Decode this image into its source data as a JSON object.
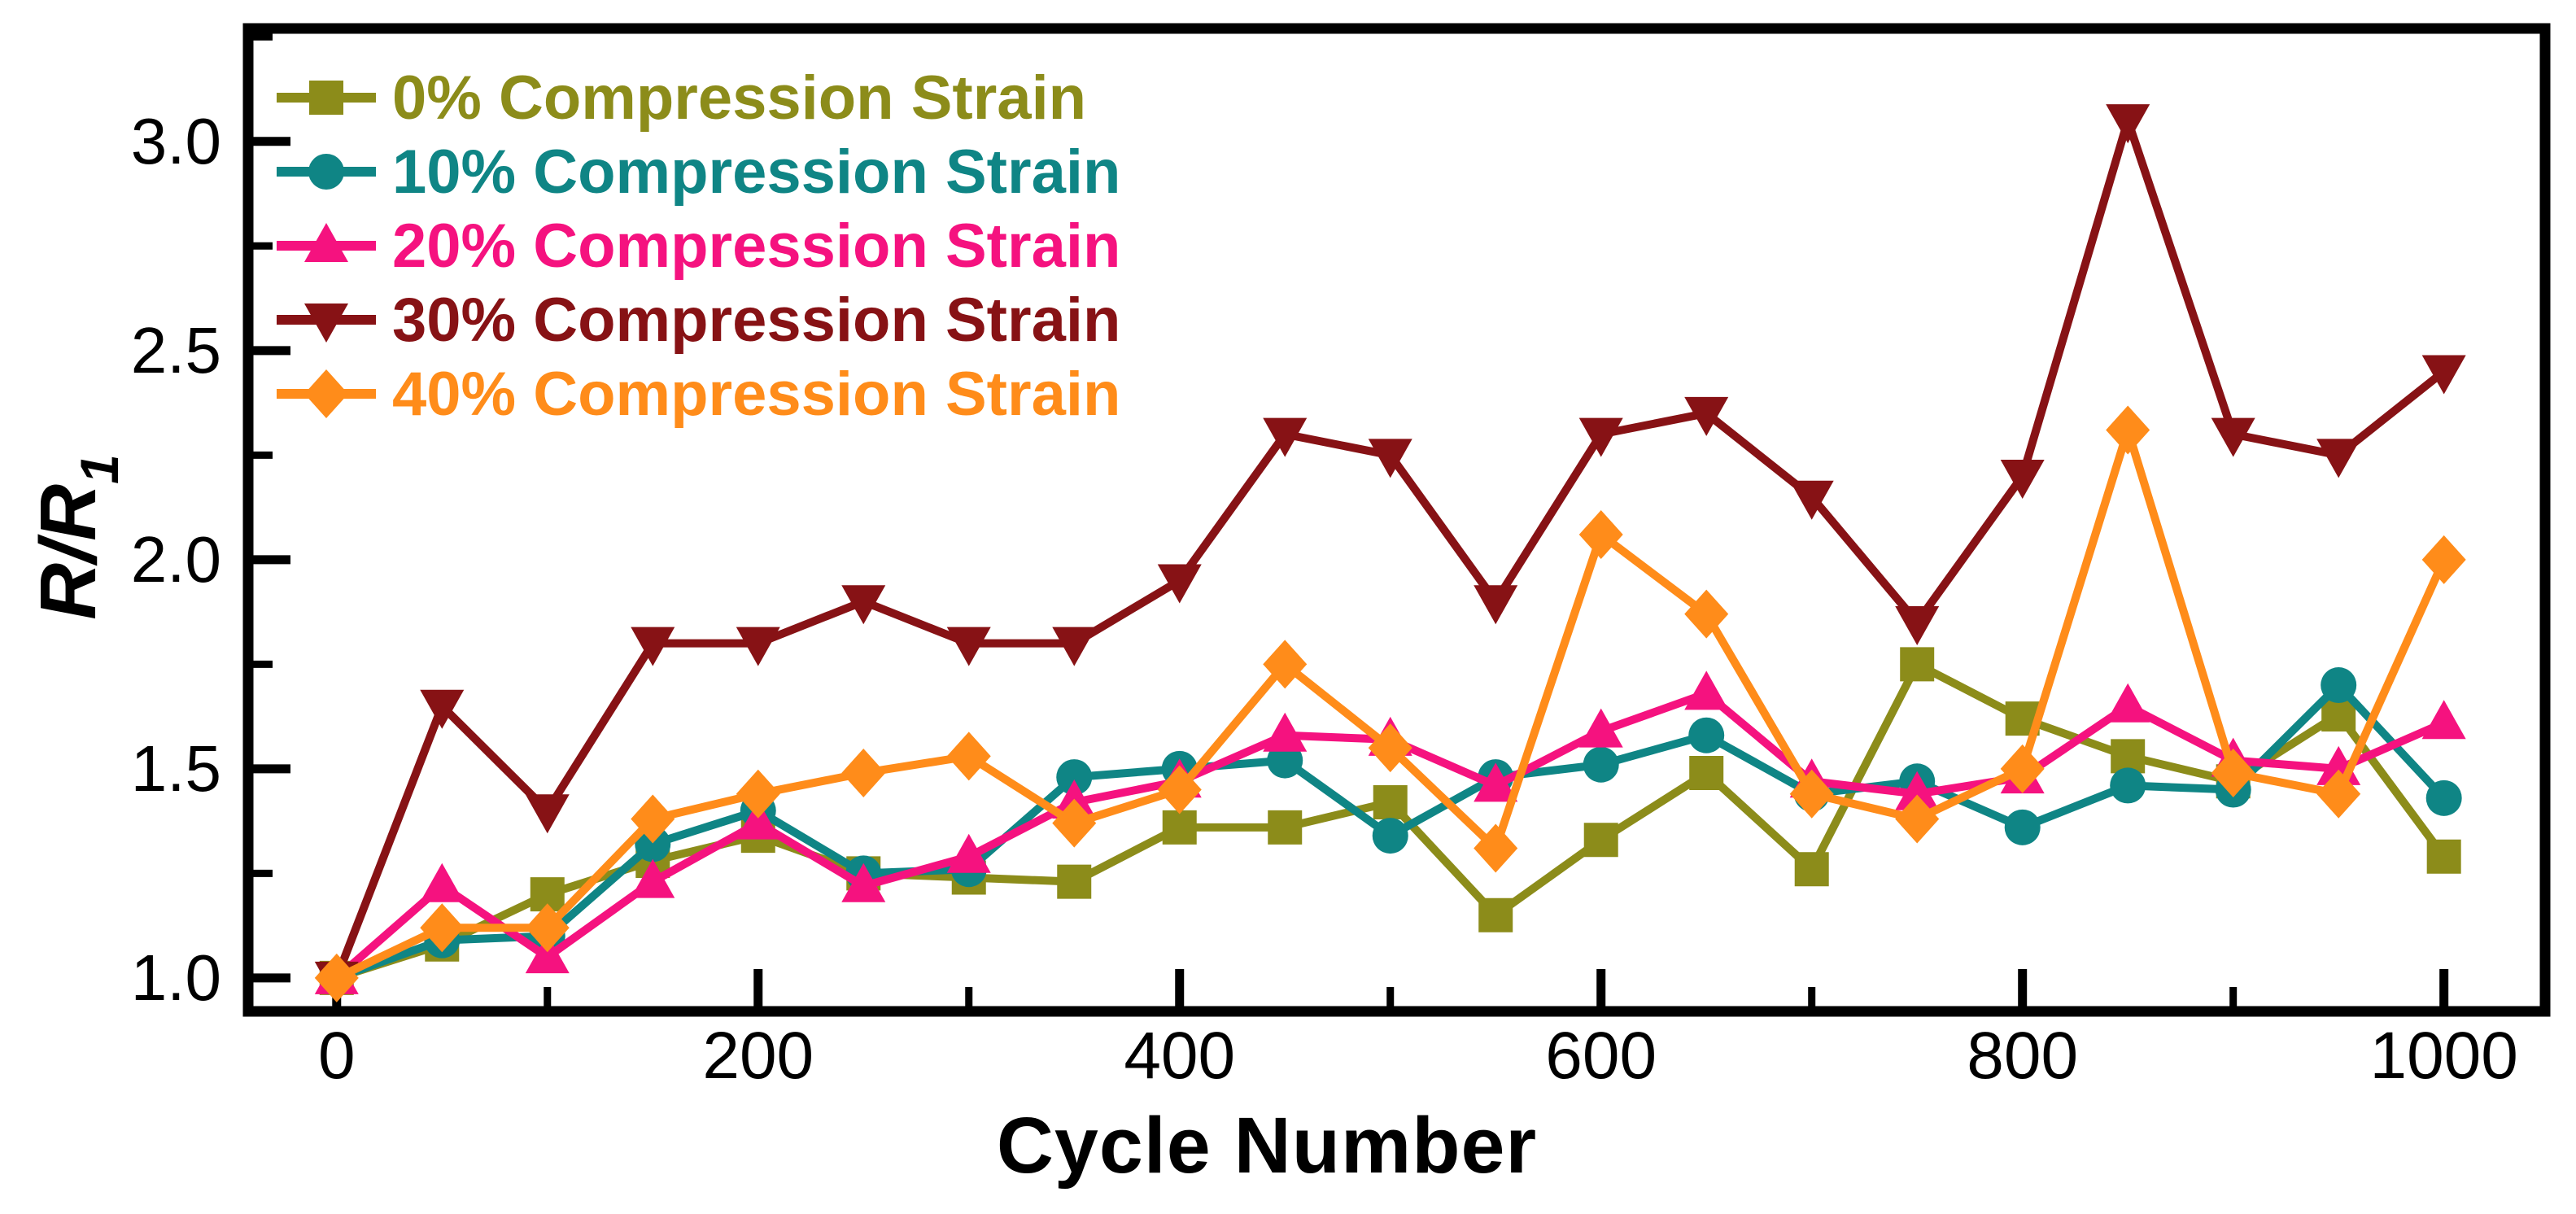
{
  "chart_data": {
    "type": "line",
    "title": "",
    "xlabel": "Cycle Number",
    "ylabel": "R/R1",
    "ylabel_main": "R/R",
    "ylabel_sub": "1",
    "x": [
      0,
      50,
      100,
      150,
      200,
      250,
      300,
      350,
      400,
      450,
      500,
      550,
      600,
      650,
      700,
      750,
      800,
      850,
      900,
      950,
      1000
    ],
    "series": [
      {
        "name": "0% Compression Strain",
        "color": "#8C8C1A",
        "marker": "square",
        "values": [
          1.0,
          1.08,
          1.2,
          1.28,
          1.34,
          1.25,
          1.24,
          1.23,
          1.36,
          1.36,
          1.42,
          1.15,
          1.33,
          1.49,
          1.26,
          1.75,
          1.62,
          1.53,
          1.47,
          1.63,
          1.29
        ]
      },
      {
        "name": "10% Compression Strain",
        "color": "#0F8585",
        "marker": "circle",
        "values": [
          1.0,
          1.09,
          1.1,
          1.32,
          1.4,
          1.25,
          1.26,
          1.48,
          1.5,
          1.52,
          1.34,
          1.48,
          1.51,
          1.58,
          1.44,
          1.47,
          1.36,
          1.46,
          1.45,
          1.7,
          1.43
        ]
      },
      {
        "name": "20% Compression Strain",
        "color": "#F5127F",
        "marker": "triangle-up",
        "values": [
          1.0,
          1.22,
          1.05,
          1.23,
          1.37,
          1.22,
          1.29,
          1.42,
          1.47,
          1.58,
          1.57,
          1.46,
          1.59,
          1.68,
          1.47,
          1.44,
          1.48,
          1.65,
          1.52,
          1.5,
          1.61
        ]
      },
      {
        "name": "30% Compression Strain",
        "color": "#871215",
        "marker": "triangle-down",
        "values": [
          1.0,
          1.65,
          1.4,
          1.8,
          1.8,
          1.9,
          1.8,
          1.8,
          1.95,
          2.3,
          2.25,
          1.9,
          2.3,
          2.35,
          2.15,
          1.85,
          2.2,
          3.05,
          2.3,
          2.25,
          2.45
        ]
      },
      {
        "name": "40% Compression Strain",
        "color": "#FF8C1A",
        "marker": "diamond",
        "values": [
          1.0,
          1.12,
          1.12,
          1.38,
          1.44,
          1.49,
          1.53,
          1.37,
          1.45,
          1.75,
          1.55,
          1.31,
          2.06,
          1.87,
          1.44,
          1.38,
          1.5,
          2.31,
          1.49,
          1.44,
          2.0
        ]
      }
    ],
    "axes": {
      "xlim": [
        -42,
        1048
      ],
      "ylim": [
        0.92,
        3.27
      ],
      "x_major_ticks": [
        0,
        200,
        400,
        600,
        800,
        1000
      ],
      "x_major_labels": [
        "0",
        "200",
        "400",
        "600",
        "800",
        "1000"
      ],
      "x_minor_ticks": [
        100,
        300,
        500,
        700,
        900
      ],
      "y_major_ticks": [
        1.0,
        1.5,
        2.0,
        2.5,
        3.0
      ],
      "y_major_labels": [
        "1.0",
        "1.5",
        "2.0",
        "2.5",
        "3.0"
      ],
      "y_minor_ticks": [
        1.25,
        1.75,
        2.25,
        2.75,
        3.25
      ],
      "grid": false,
      "axis_color": "#000000"
    },
    "legend": {
      "position": "top-left",
      "items": [
        "0% Compression Strain",
        "10% Compression Strain",
        "20% Compression Strain",
        "30% Compression Strain",
        "40% Compression Strain"
      ]
    }
  }
}
